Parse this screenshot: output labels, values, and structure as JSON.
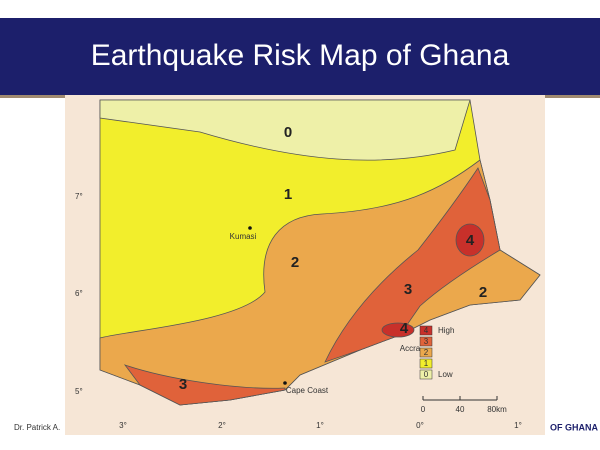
{
  "title": "Earthquake Risk Map of Ghana",
  "map": {
    "zones": [
      {
        "label": "0"
      },
      {
        "label": "1"
      },
      {
        "label": "2"
      },
      {
        "label": "4"
      },
      {
        "label": "3"
      },
      {
        "label": "2"
      },
      {
        "label": "4"
      },
      {
        "label": "3"
      }
    ],
    "places": [
      "Kumasi",
      "Accra",
      "Cape Coast"
    ],
    "latitudes": [
      "7°",
      "6°",
      "5°"
    ],
    "longitudes": [
      "3°",
      "2°",
      "1°",
      "0°",
      "1°"
    ],
    "legend": [
      {
        "label": "4",
        "text": "High"
      },
      {
        "label": "3"
      },
      {
        "label": "2"
      },
      {
        "label": "1"
      },
      {
        "label": "0",
        "text": "Low"
      }
    ],
    "scale": [
      "0",
      "40",
      "80km"
    ]
  },
  "footer": {
    "author": "Dr. Patrick A.",
    "org": "OF GHANA"
  }
}
